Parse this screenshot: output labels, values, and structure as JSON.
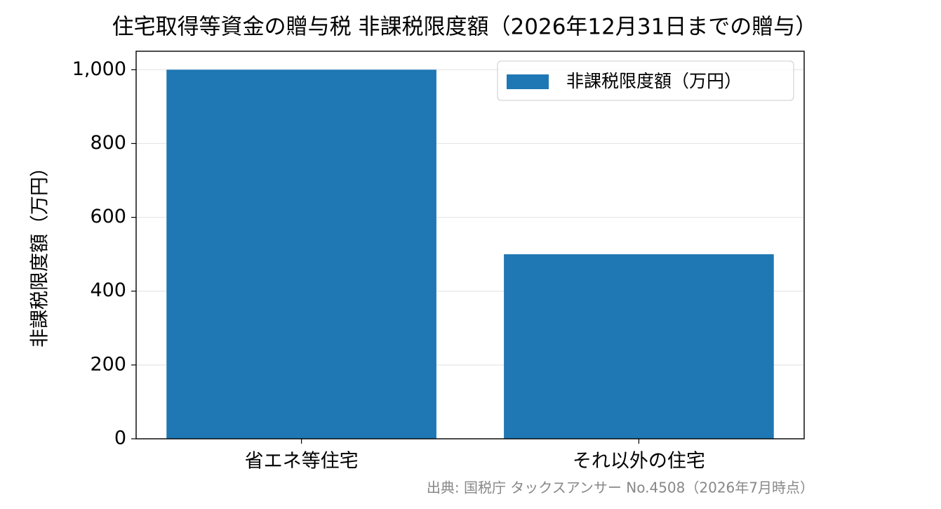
{
  "chart_data": {
    "type": "bar",
    "title": "住宅取得等資金の贈与税 非課税限度額（2026年12月31日までの贈与）",
    "y_label": "非課税限度額（万円）",
    "categories": [
      "省エネ等住宅",
      "それ以外の住宅"
    ],
    "series": [
      {
        "name": "非課税限度額（万円）",
        "color": "#1f77b4",
        "values": [
          1000,
          500
        ]
      }
    ],
    "ylim": [
      0,
      1050
    ],
    "yticks": [
      0,
      200,
      400,
      600,
      800,
      {
        "value": 1000,
        "label": "1,000"
      }
    ],
    "grid": true,
    "legend": "upper right",
    "annotation": "出典: 国税庁 タックスアンサー No.4508（2026年7月時点）"
  }
}
